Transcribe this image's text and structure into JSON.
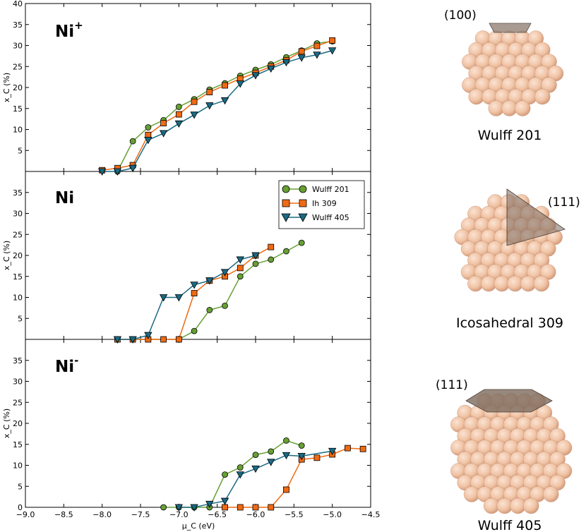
{
  "colors": {
    "wulff201": "#66a033",
    "ih309": "#f06a14",
    "wulff405": "#1a6a84",
    "sphere": "#f2c4a6",
    "sphere_shade": "#d89c7c"
  },
  "chart_data": [
    {
      "type": "line",
      "panel_label": "Ni",
      "panel_label_sup": "+",
      "xlabel": "μ_C (eV)",
      "ylabel": "x_C (%)",
      "xlim": [
        -9.0,
        -4.5
      ],
      "ylim": [
        0,
        40
      ],
      "y_ticks": [
        5,
        10,
        15,
        20,
        25,
        30,
        35,
        40
      ],
      "series": [
        {
          "name": "Wulff 201",
          "marker": "circle",
          "x": [
            -7.8,
            -7.6,
            -7.4,
            -7.2,
            -7.0,
            -6.8,
            -6.6,
            -6.4,
            -6.2,
            -6.0,
            -5.8,
            -5.6,
            -5.4,
            -5.2,
            -5.0
          ],
          "y": [
            0.0,
            7.2,
            10.5,
            12.2,
            15.4,
            17.2,
            19.5,
            21.0,
            22.8,
            24.2,
            25.5,
            27.2,
            28.8,
            30.5,
            31.0
          ]
        },
        {
          "name": "Ih 309",
          "marker": "square",
          "x": [
            -8.0,
            -7.8,
            -7.6,
            -7.4,
            -7.2,
            -7.0,
            -6.8,
            -6.6,
            -6.4,
            -6.2,
            -6.0,
            -5.8,
            -5.6,
            -5.4,
            -5.2,
            -5.0
          ],
          "y": [
            0.3,
            0.8,
            1.5,
            8.7,
            11.5,
            13.6,
            16.6,
            18.9,
            20.5,
            22.1,
            23.5,
            25.0,
            26.5,
            28.6,
            29.9,
            31.2
          ]
        },
        {
          "name": "Wulff 405",
          "marker": "triangle",
          "x": [
            -8.0,
            -7.8,
            -7.6,
            -7.4,
            -7.2,
            -7.0,
            -6.8,
            -6.6,
            -6.4,
            -6.2,
            -6.0,
            -5.8,
            -5.6,
            -5.4,
            -5.2,
            -5.0
          ],
          "y": [
            0.0,
            0.0,
            0.8,
            7.5,
            9.1,
            11.4,
            13.5,
            15.7,
            16.9,
            20.9,
            22.9,
            24.5,
            26.0,
            27.1,
            27.8,
            28.8
          ]
        }
      ]
    },
    {
      "type": "line",
      "panel_label": "Ni",
      "panel_label_sup": "",
      "xlabel": "μ_C (eV)",
      "ylabel": "x_C (%)",
      "xlim": [
        -9.0,
        -4.5
      ],
      "ylim": [
        0,
        40
      ],
      "y_ticks": [
        5,
        10,
        15,
        20,
        25,
        30,
        35
      ],
      "legend": {
        "placement": "top-right",
        "entries": [
          "Wulff 201",
          "Ih 309",
          "Wulff 405"
        ]
      },
      "series": [
        {
          "name": "Wulff 201",
          "marker": "circle",
          "x": [
            -7.8,
            -7.6,
            -7.4,
            -7.2,
            -7.0,
            -6.8,
            -6.6,
            -6.4,
            -6.2,
            -6.0,
            -5.8,
            -5.6,
            -5.4
          ],
          "y": [
            0.0,
            0.0,
            0.0,
            0.0,
            0.0,
            2.0,
            7.0,
            8.0,
            15.0,
            18.0,
            19.0,
            21.0,
            23.0
          ]
        },
        {
          "name": "Ih 309",
          "marker": "square",
          "x": [
            -7.8,
            -7.6,
            -7.4,
            -7.2,
            -7.0,
            -6.8,
            -6.6,
            -6.4,
            -6.2,
            -6.0,
            -5.8
          ],
          "y": [
            0.0,
            0.0,
            0.0,
            0.0,
            0.0,
            11.0,
            14.0,
            15.0,
            17.0,
            20.0,
            22.0
          ]
        },
        {
          "name": "Wulff 405",
          "marker": "triangle",
          "x": [
            -7.8,
            -7.6,
            -7.4,
            -7.2,
            -7.0,
            -6.8,
            -6.6,
            -6.4,
            -6.2,
            -6.0
          ],
          "y": [
            0.0,
            0.0,
            1.0,
            10.0,
            10.0,
            13.0,
            14.0,
            16.0,
            19.0,
            20.0
          ]
        }
      ]
    },
    {
      "type": "line",
      "panel_label": "Ni",
      "panel_label_sup": "-",
      "xlabel": "μ_C (eV)",
      "ylabel": "x_C (%)",
      "xlim": [
        -9.0,
        -4.5
      ],
      "ylim": [
        0,
        40
      ],
      "y_ticks": [
        0,
        5,
        10,
        15,
        20,
        25,
        30,
        35
      ],
      "x_ticks": [
        -9.0,
        -8.5,
        -8.0,
        -7.5,
        -7.0,
        -6.5,
        -6.0,
        -5.5,
        -5.0,
        -4.5
      ],
      "x_tick_labels": [
        "−9.0",
        "−8.5",
        "−8.0",
        "−7.5",
        "−7.0",
        "−6.5",
        "−6.0",
        "−5.5",
        "−5.0",
        "−4.5"
      ],
      "series": [
        {
          "name": "Wulff 201",
          "marker": "circle",
          "x": [
            -7.2,
            -7.0,
            -6.8,
            -6.6,
            -6.4,
            -6.2,
            -6.0,
            -5.8,
            -5.6,
            -5.4
          ],
          "y": [
            0.0,
            0.0,
            0.0,
            0.0,
            7.8,
            9.5,
            12.5,
            13.3,
            15.9,
            14.7
          ]
        },
        {
          "name": "Ih 309",
          "marker": "square",
          "x": [
            -6.4,
            -6.2,
            -6.0,
            -5.8,
            -5.6,
            -5.4,
            -5.2,
            -5.0,
            -4.8,
            -4.6
          ],
          "y": [
            0.0,
            0.0,
            0.0,
            0.0,
            4.2,
            11.4,
            11.8,
            12.6,
            14.1,
            13.9
          ]
        },
        {
          "name": "Wulff 405",
          "marker": "triangle",
          "x": [
            -7.0,
            -6.8,
            -6.6,
            -6.4,
            -6.2,
            -6.0,
            -5.8,
            -5.6,
            -5.4,
            -5.0
          ],
          "y": [
            0.0,
            0.0,
            0.8,
            1.5,
            7.8,
            9.2,
            10.8,
            12.4,
            12.2,
            13.4
          ]
        }
      ]
    }
  ],
  "clusters": [
    {
      "facet_label": "(100)",
      "caption": "Wulff 201"
    },
    {
      "facet_label": "(111)",
      "caption": "Icosahedral 309"
    },
    {
      "facet_label": "(111)",
      "caption": "Wulff 405"
    }
  ]
}
